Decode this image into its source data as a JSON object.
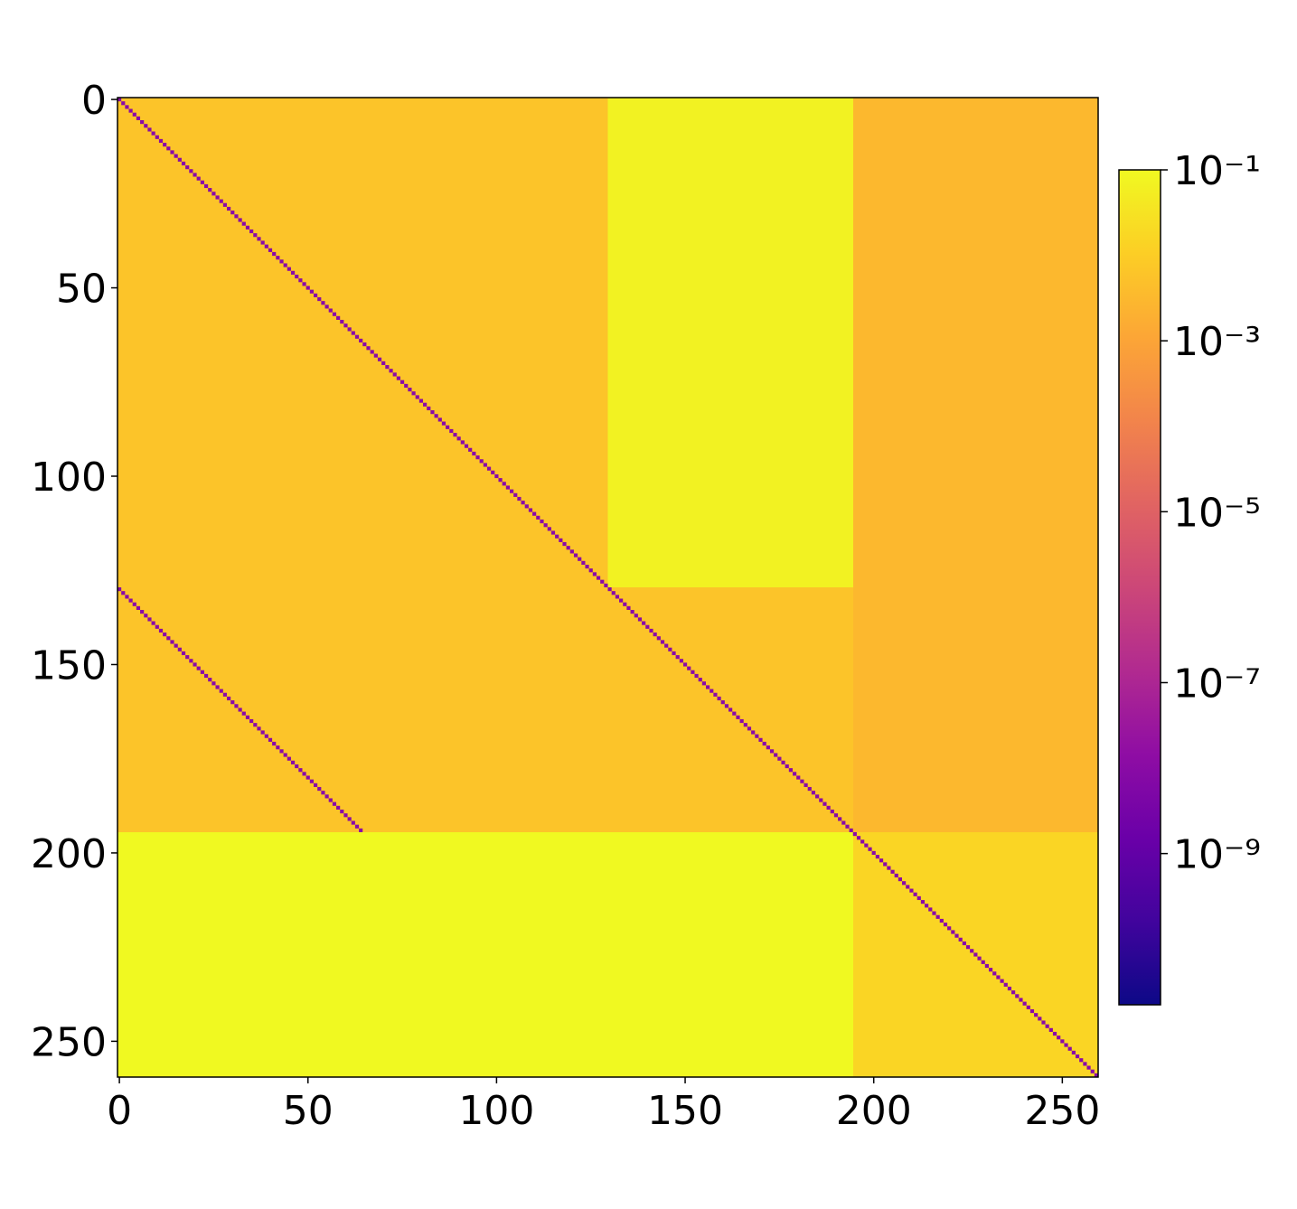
{
  "chart_data": {
    "type": "heatmap",
    "colormap": "plasma",
    "log_scale": true,
    "xlim": [
      -0.5,
      259.5
    ],
    "ylim": [
      -0.5,
      259.5
    ],
    "xticks": [
      0,
      50,
      100,
      150,
      200,
      250
    ],
    "yticks": [
      0,
      50,
      100,
      150,
      200,
      250
    ],
    "blocks": [
      {
        "rows": [
          0,
          194
        ],
        "cols": [
          0,
          129
        ],
        "value": 0.006
      },
      {
        "rows": [
          0,
          129
        ],
        "cols": [
          130,
          194
        ],
        "value": 0.07
      },
      {
        "rows": [
          130,
          194
        ],
        "cols": [
          130,
          194
        ],
        "value": 0.006
      },
      {
        "rows": [
          0,
          194
        ],
        "cols": [
          195,
          259
        ],
        "value": 0.003
      },
      {
        "rows": [
          195,
          259
        ],
        "cols": [
          0,
          194
        ],
        "value": 0.1
      },
      {
        "rows": [
          195,
          259
        ],
        "cols": [
          195,
          259
        ],
        "value": 0.015
      }
    ],
    "diagonals": [
      {
        "start": [
          0,
          0
        ],
        "length": 260,
        "value": 1e-08
      },
      {
        "start": [
          130,
          0
        ],
        "length": 65,
        "value": 1e-08
      }
    ],
    "clim": [
      1.7e-11,
      0.1
    ],
    "cticks": [
      {
        "value": 0.1,
        "label": "10⁻¹"
      },
      {
        "value": 0.001,
        "label": "10⁻³"
      },
      {
        "value": 1e-05,
        "label": "10⁻⁵"
      },
      {
        "value": 1e-07,
        "label": "10⁻⁷"
      },
      {
        "value": 1e-09,
        "label": "10⁻⁹"
      }
    ]
  }
}
